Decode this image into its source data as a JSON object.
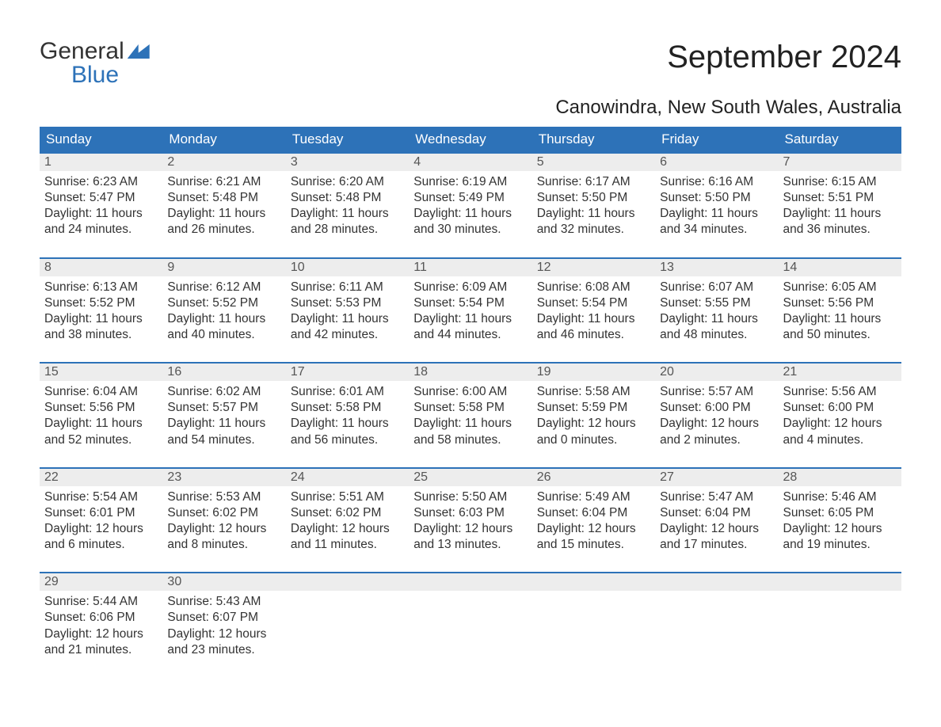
{
  "logo": {
    "word1": "General",
    "word2": "Blue"
  },
  "title": "September 2024",
  "location": "Canowindra, New South Wales, Australia",
  "colors": {
    "header_bg": "#2d72b8",
    "header_text": "#ffffff",
    "daynum_bg": "#ededed",
    "daynum_text": "#555555",
    "body_text": "#333333",
    "week_border": "#2d72b8",
    "page_bg": "#ffffff"
  },
  "typography": {
    "title_fontsize": 40,
    "location_fontsize": 24,
    "weekday_fontsize": 17,
    "body_fontsize": 15.5
  },
  "weekdays": [
    "Sunday",
    "Monday",
    "Tuesday",
    "Wednesday",
    "Thursday",
    "Friday",
    "Saturday"
  ],
  "weeks": [
    [
      {
        "n": "1",
        "sunrise": "6:23 AM",
        "sunset": "5:47 PM",
        "daylight": "11 hours and 24 minutes."
      },
      {
        "n": "2",
        "sunrise": "6:21 AM",
        "sunset": "5:48 PM",
        "daylight": "11 hours and 26 minutes."
      },
      {
        "n": "3",
        "sunrise": "6:20 AM",
        "sunset": "5:48 PM",
        "daylight": "11 hours and 28 minutes."
      },
      {
        "n": "4",
        "sunrise": "6:19 AM",
        "sunset": "5:49 PM",
        "daylight": "11 hours and 30 minutes."
      },
      {
        "n": "5",
        "sunrise": "6:17 AM",
        "sunset": "5:50 PM",
        "daylight": "11 hours and 32 minutes."
      },
      {
        "n": "6",
        "sunrise": "6:16 AM",
        "sunset": "5:50 PM",
        "daylight": "11 hours and 34 minutes."
      },
      {
        "n": "7",
        "sunrise": "6:15 AM",
        "sunset": "5:51 PM",
        "daylight": "11 hours and 36 minutes."
      }
    ],
    [
      {
        "n": "8",
        "sunrise": "6:13 AM",
        "sunset": "5:52 PM",
        "daylight": "11 hours and 38 minutes."
      },
      {
        "n": "9",
        "sunrise": "6:12 AM",
        "sunset": "5:52 PM",
        "daylight": "11 hours and 40 minutes."
      },
      {
        "n": "10",
        "sunrise": "6:11 AM",
        "sunset": "5:53 PM",
        "daylight": "11 hours and 42 minutes."
      },
      {
        "n": "11",
        "sunrise": "6:09 AM",
        "sunset": "5:54 PM",
        "daylight": "11 hours and 44 minutes."
      },
      {
        "n": "12",
        "sunrise": "6:08 AM",
        "sunset": "5:54 PM",
        "daylight": "11 hours and 46 minutes."
      },
      {
        "n": "13",
        "sunrise": "6:07 AM",
        "sunset": "5:55 PM",
        "daylight": "11 hours and 48 minutes."
      },
      {
        "n": "14",
        "sunrise": "6:05 AM",
        "sunset": "5:56 PM",
        "daylight": "11 hours and 50 minutes."
      }
    ],
    [
      {
        "n": "15",
        "sunrise": "6:04 AM",
        "sunset": "5:56 PM",
        "daylight": "11 hours and 52 minutes."
      },
      {
        "n": "16",
        "sunrise": "6:02 AM",
        "sunset": "5:57 PM",
        "daylight": "11 hours and 54 minutes."
      },
      {
        "n": "17",
        "sunrise": "6:01 AM",
        "sunset": "5:58 PM",
        "daylight": "11 hours and 56 minutes."
      },
      {
        "n": "18",
        "sunrise": "6:00 AM",
        "sunset": "5:58 PM",
        "daylight": "11 hours and 58 minutes."
      },
      {
        "n": "19",
        "sunrise": "5:58 AM",
        "sunset": "5:59 PM",
        "daylight": "12 hours and 0 minutes."
      },
      {
        "n": "20",
        "sunrise": "5:57 AM",
        "sunset": "6:00 PM",
        "daylight": "12 hours and 2 minutes."
      },
      {
        "n": "21",
        "sunrise": "5:56 AM",
        "sunset": "6:00 PM",
        "daylight": "12 hours and 4 minutes."
      }
    ],
    [
      {
        "n": "22",
        "sunrise": "5:54 AM",
        "sunset": "6:01 PM",
        "daylight": "12 hours and 6 minutes."
      },
      {
        "n": "23",
        "sunrise": "5:53 AM",
        "sunset": "6:02 PM",
        "daylight": "12 hours and 8 minutes."
      },
      {
        "n": "24",
        "sunrise": "5:51 AM",
        "sunset": "6:02 PM",
        "daylight": "12 hours and 11 minutes."
      },
      {
        "n": "25",
        "sunrise": "5:50 AM",
        "sunset": "6:03 PM",
        "daylight": "12 hours and 13 minutes."
      },
      {
        "n": "26",
        "sunrise": "5:49 AM",
        "sunset": "6:04 PM",
        "daylight": "12 hours and 15 minutes."
      },
      {
        "n": "27",
        "sunrise": "5:47 AM",
        "sunset": "6:04 PM",
        "daylight": "12 hours and 17 minutes."
      },
      {
        "n": "28",
        "sunrise": "5:46 AM",
        "sunset": "6:05 PM",
        "daylight": "12 hours and 19 minutes."
      }
    ],
    [
      {
        "n": "29",
        "sunrise": "5:44 AM",
        "sunset": "6:06 PM",
        "daylight": "12 hours and 21 minutes."
      },
      {
        "n": "30",
        "sunrise": "5:43 AM",
        "sunset": "6:07 PM",
        "daylight": "12 hours and 23 minutes."
      },
      {
        "empty": true
      },
      {
        "empty": true
      },
      {
        "empty": true
      },
      {
        "empty": true
      },
      {
        "empty": true
      }
    ]
  ],
  "labels": {
    "sunrise_prefix": "Sunrise: ",
    "sunset_prefix": "Sunset: ",
    "daylight_prefix": "Daylight: "
  }
}
